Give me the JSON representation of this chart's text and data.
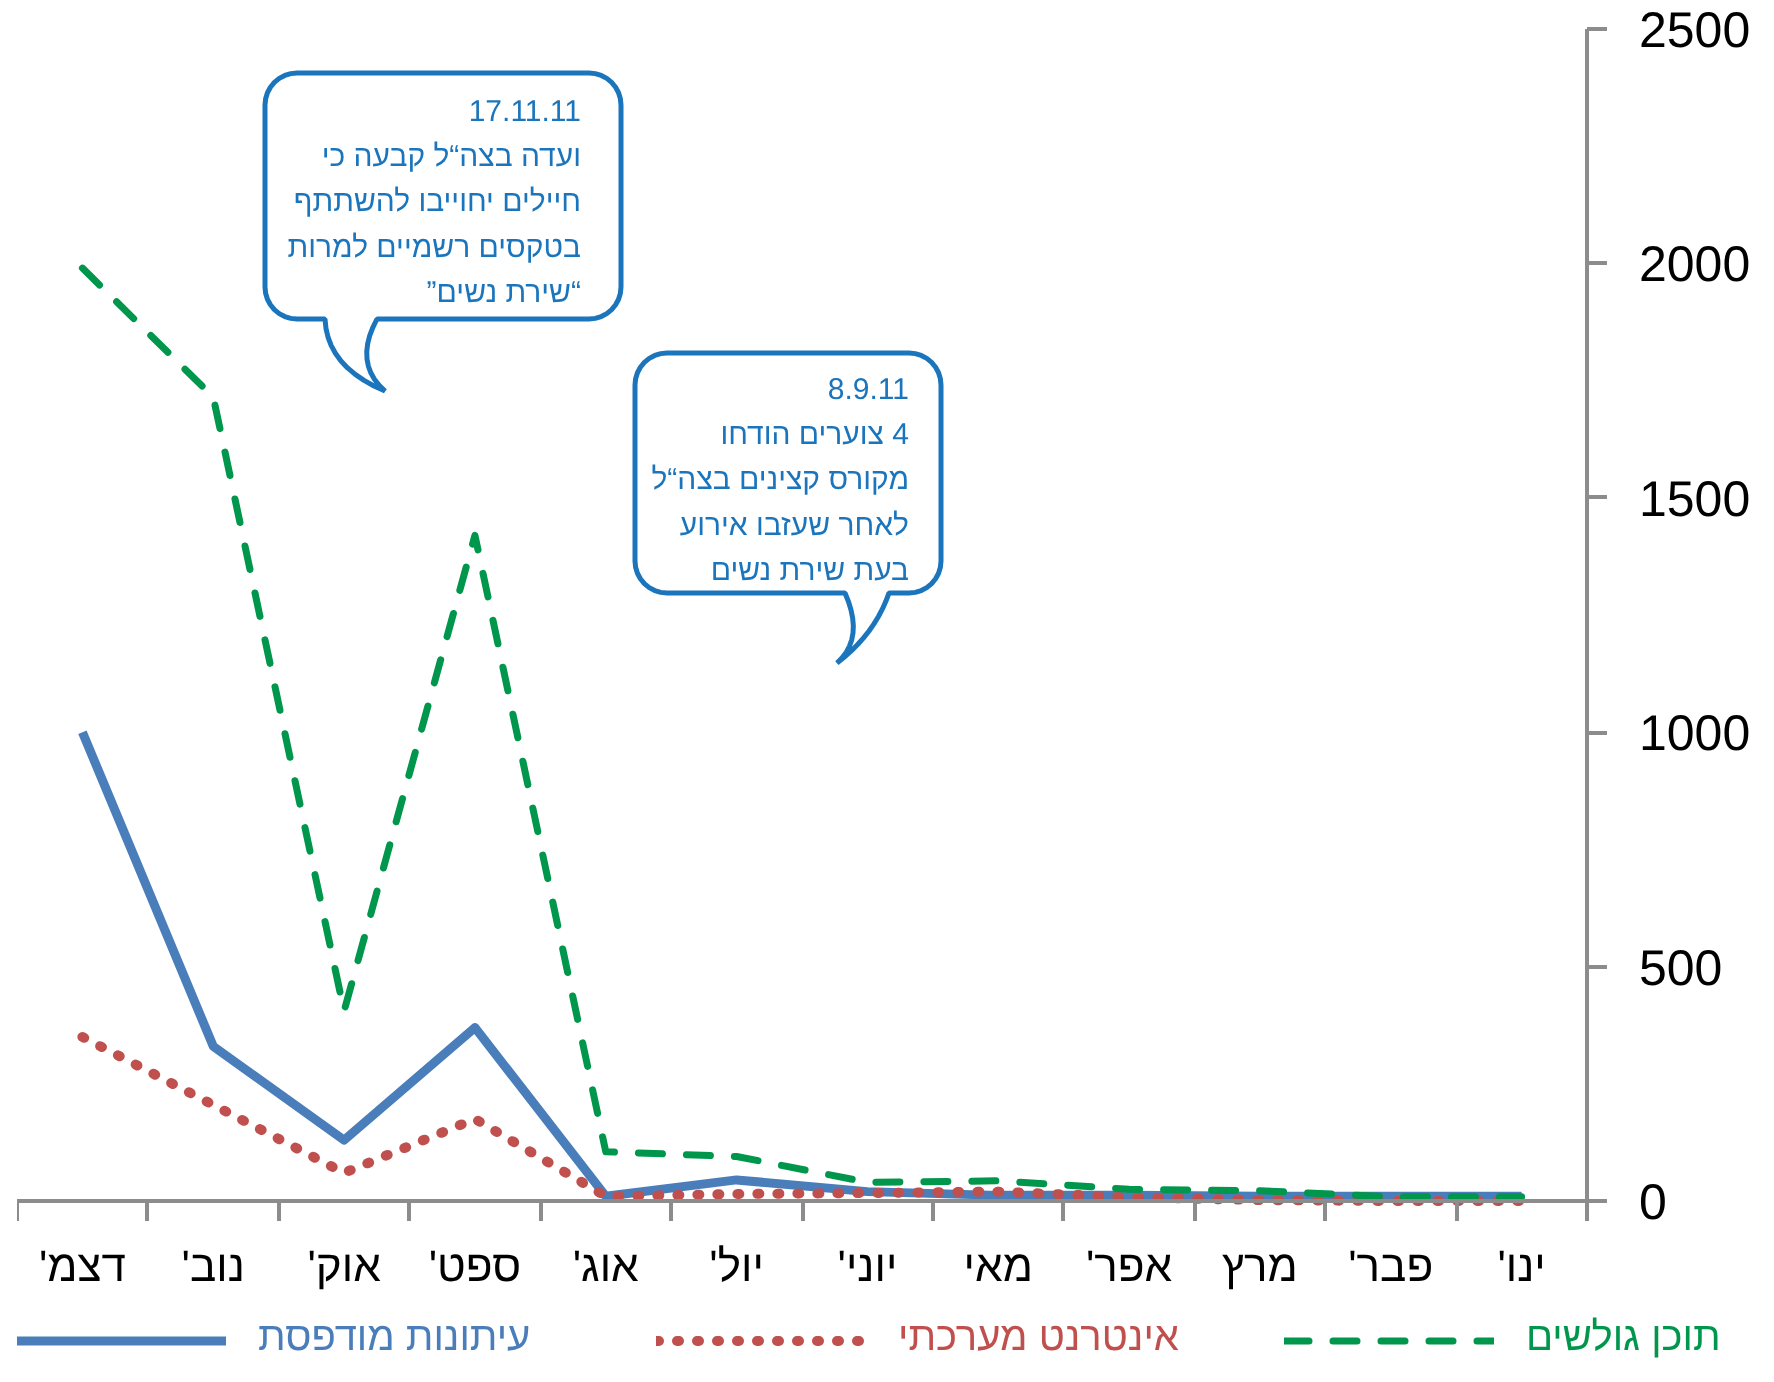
{
  "chart_data": {
    "type": "line",
    "categories": [
      "דצמ'",
      "נוב'",
      "אוק'",
      "ספט'",
      "אוג'",
      "יול'",
      "יוני'",
      "מאי",
      "אפר'",
      "מרץ",
      "פבר'",
      "ינו'"
    ],
    "series": [
      {
        "name": "עיתונות מודפסת",
        "color": "#4a7ebb",
        "line_style": "solid",
        "values": [
          1000,
          330,
          130,
          370,
          10,
          45,
          20,
          12,
          12,
          10,
          10,
          10
        ]
      },
      {
        "name": "אינטרנט מערכתי",
        "color": "#c0504d",
        "line_style": "dotted",
        "values": [
          350,
          205,
          60,
          175,
          10,
          15,
          17,
          20,
          8,
          2,
          0,
          0
        ]
      },
      {
        "name": "תוכן גולשים",
        "color": "#00964b",
        "line_style": "dashed",
        "values": [
          1990,
          1715,
          405,
          1420,
          105,
          95,
          40,
          43,
          25,
          22,
          9,
          9
        ]
      }
    ],
    "ylim": [
      0,
      2500
    ],
    "yticks": [
      0,
      500,
      1000,
      1500,
      2000,
      2500
    ],
    "legend": "bottom",
    "annotations": [
      "17.11.11\nועדה בצה“ל קבעה כי\nחיילים יחוייבו להשתתף\nבטקסים רשמיים למרות\n“שירת נשים”",
      "8.9.11\n4 צוערים הודחו\nמקורס קצינים בצה“ל\nלאחר שעזבו אירוע\nבעת שירת נשים"
    ]
  }
}
